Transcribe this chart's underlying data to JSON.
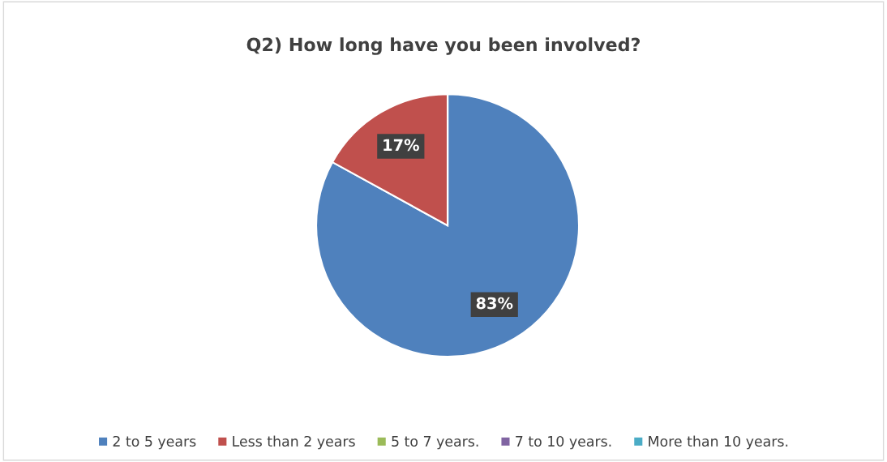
{
  "chart_data": {
    "type": "pie",
    "title": "Q2) How long have you been involved?",
    "categories": [
      "2 to 5 years",
      "Less than 2 years",
      "5 to 7 years.",
      "7 to 10 years.",
      "More than 10 years."
    ],
    "values": [
      83,
      17,
      0,
      0,
      0
    ],
    "value_labels": [
      "83%",
      "17%",
      null,
      null,
      null
    ],
    "colors": [
      "#4f81bd",
      "#c0504d",
      "#9bbb59",
      "#8064a2",
      "#4bacc6"
    ],
    "legend": "bottom"
  }
}
